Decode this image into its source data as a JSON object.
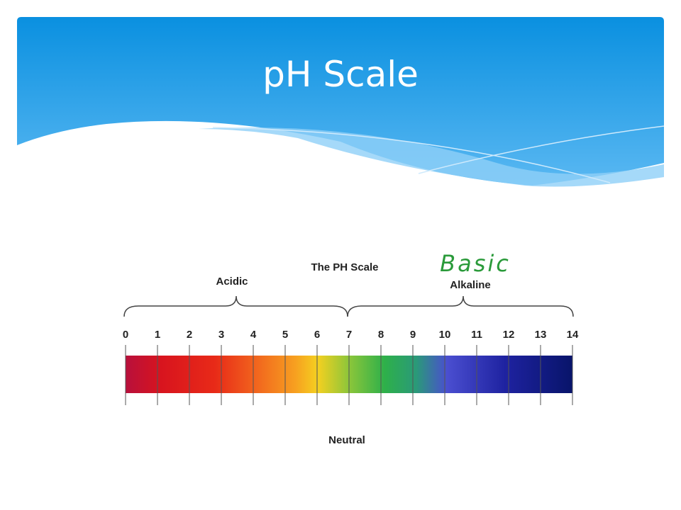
{
  "slide": {
    "title": "pH Scale"
  },
  "figure": {
    "title": "The PH Scale",
    "left_label": "Acidic",
    "right_label": "Alkaline",
    "annotation": "Basic",
    "bottom_label": "Neutral",
    "ticks": [
      0,
      1,
      2,
      3,
      4,
      5,
      6,
      7,
      8,
      9,
      10,
      11,
      12,
      13,
      14
    ]
  }
}
